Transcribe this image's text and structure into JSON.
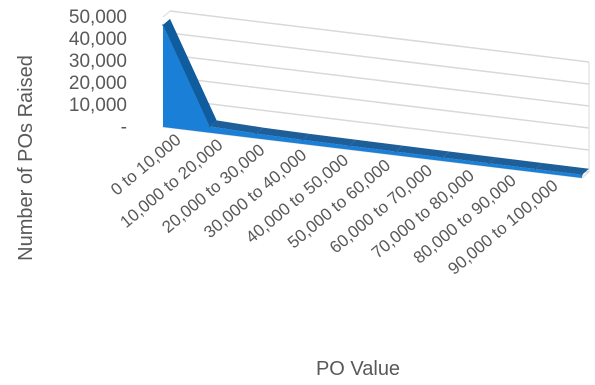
{
  "chart_data": {
    "type": "area",
    "style": "3d",
    "categories": [
      "0 to 10,000",
      "10,000 to 20,000",
      "20,000 to 30,000",
      "30,000 to 40,000",
      "40,000 to 50,000",
      "50,000 to 60,000",
      "60,000 to 70,000",
      "70,000 to 80,000",
      "80,000 to 90,000",
      "90,000 to 100,000"
    ],
    "values": [
      45000,
      1500,
      800,
      500,
      400,
      300,
      250,
      200,
      150,
      100
    ],
    "title": "",
    "xlabel": "PO Value",
    "ylabel": "Number of POs Raised",
    "ylim": [
      0,
      50000
    ],
    "yticks": [
      0,
      10000,
      20000,
      30000,
      40000,
      50000
    ],
    "ytick_labels": [
      "-",
      "10,000",
      "20,000",
      "30,000",
      "40,000",
      "50,000"
    ],
    "grid": true,
    "legend": "none",
    "colors": {
      "front": "#1a7fd6",
      "top": "#1f5f99",
      "side": "#0f5c9e",
      "gridline": "#d9d9d9",
      "axis_text": "#595959"
    }
  }
}
